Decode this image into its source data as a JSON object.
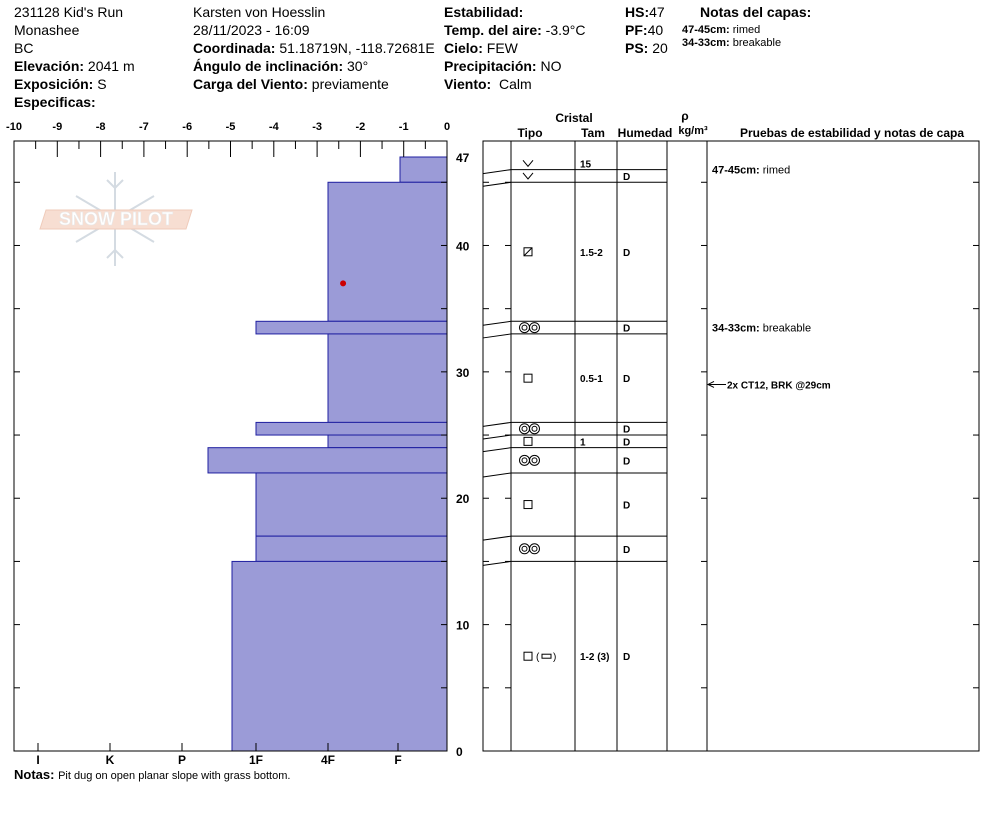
{
  "header": {
    "pit_name": "231128 Kid's Run",
    "area": "Monashee",
    "region": "BC",
    "elevation_label": "Elevación:",
    "elevation_value": "2041 m",
    "aspect_label": "Exposición:",
    "aspect_value": "S",
    "specifics_label": "Especificas:",
    "observer": "Karsten  von Hoesslin",
    "datetime": "28/11/2023 - 16:09",
    "coord_label": "Coordinada:",
    "coord_value": "51.18719N, -118.72681E",
    "slope_label": "Ángulo de inclinación:",
    "slope_value": "30°",
    "wind_load_label": "Carga del Viento:",
    "wind_load_value": "previamente",
    "stability_label": "Estabilidad:",
    "stability_value": "",
    "air_temp_label": "Temp. del aire:",
    "air_temp_value": "-3.9°C",
    "sky_label": "Cielo:",
    "sky_value": "FEW",
    "precip_label": "Precipitación:",
    "precip_value": "NO",
    "wind_label": "Viento:",
    "wind_value": "Calm",
    "hs_label": "HS:",
    "hs_value": "47",
    "pf_label": "PF:",
    "pf_value": "40",
    "ps_label": "PS:",
    "ps_value": "20",
    "layer_notes_title": "Notas del capas:",
    "layer_notes": [
      {
        "range": "47-45cm:",
        "note": "rimed"
      },
      {
        "range": "34-33cm:",
        "note": "breakable"
      }
    ]
  },
  "logo_text": "SNOW PILOT",
  "notes_label": "Notas:",
  "notes_value": "Pit dug on open planar slope with grass bottom.",
  "table_headers": {
    "crystal": "Cristal",
    "type": "Tipo",
    "size": "Tam",
    "moisture": "Humedad",
    "rho": "ρ",
    "density_unit": "kg/m³",
    "tests": "Pruebas de estabilidad y notas de capa"
  },
  "chart_data": {
    "type": "snow_profile",
    "temperature_axis": {
      "ticks": [
        -10,
        -9,
        -8,
        -7,
        -6,
        -5,
        -4,
        -3,
        -2,
        -1,
        0
      ],
      "range": [
        -10,
        0
      ]
    },
    "hardness_axis": {
      "labels": [
        "I",
        "K",
        "P",
        "1F",
        "4F",
        "F"
      ]
    },
    "height_axis": {
      "ticks": [
        0,
        10,
        20,
        30,
        40,
        47
      ],
      "range": [
        0,
        47
      ]
    },
    "hardness_layers": [
      {
        "bottom": 45,
        "top": 47,
        "hardness": 1.2
      },
      {
        "bottom": 34,
        "top": 45,
        "hardness": 3.0
      },
      {
        "bottom": 33,
        "top": 34,
        "hardness": 4.7
      },
      {
        "bottom": 26,
        "top": 33,
        "hardness": 3.0
      },
      {
        "bottom": 25,
        "top": 26,
        "hardness": 4.7
      },
      {
        "bottom": 24,
        "top": 25,
        "hardness": 3.0
      },
      {
        "bottom": 22,
        "top": 24,
        "hardness": 5.6
      },
      {
        "bottom": 17,
        "top": 22,
        "hardness": 4.7
      },
      {
        "bottom": 15,
        "top": 17,
        "hardness": 4.7
      },
      {
        "bottom": 0,
        "top": 15,
        "hardness": 5.1
      }
    ],
    "temperature_points": [
      {
        "height": 37,
        "temp": -2.4
      }
    ],
    "table_rows": [
      {
        "bottom": 46,
        "top": 47,
        "type": "precip",
        "size": "15",
        "moisture": ""
      },
      {
        "bottom": 45,
        "top": 46,
        "type": "precip",
        "size": "",
        "moisture": "D"
      },
      {
        "bottom": 34,
        "top": 45,
        "type": "mf",
        "size": "1.5-2",
        "moisture": "D"
      },
      {
        "bottom": 33,
        "top": 34,
        "type": "rounds",
        "size": "",
        "moisture": "D"
      },
      {
        "bottom": 26,
        "top": 33,
        "type": "facet",
        "size": "0.5-1",
        "moisture": "D"
      },
      {
        "bottom": 25,
        "top": 26,
        "type": "rounds",
        "size": "",
        "moisture": "D"
      },
      {
        "bottom": 24,
        "top": 25,
        "type": "facet",
        "size": "1",
        "moisture": "D"
      },
      {
        "bottom": 22,
        "top": 24,
        "type": "rounds",
        "size": "",
        "moisture": "D"
      },
      {
        "bottom": 17,
        "top": 22,
        "type": "facet",
        "size": "",
        "moisture": "D"
      },
      {
        "bottom": 15,
        "top": 17,
        "type": "rounds",
        "size": "",
        "moisture": "D"
      },
      {
        "bottom": 0,
        "top": 15,
        "type": "facet-mixed",
        "size": "1-2 (3)",
        "moisture": "D"
      }
    ],
    "layer_comments": [
      {
        "height": 46,
        "range": "47-45cm:",
        "note": "rimed"
      },
      {
        "height": 33.5,
        "range": "34-33cm:",
        "note": "breakable"
      }
    ],
    "stability_tests": [
      {
        "height": 29,
        "text": "2x CT12, BRK @29cm"
      }
    ],
    "colors": {
      "hardness_fill": "#9b9bd7",
      "hardness_stroke": "#1f1fa0",
      "temp_point": "#cc0000"
    }
  }
}
